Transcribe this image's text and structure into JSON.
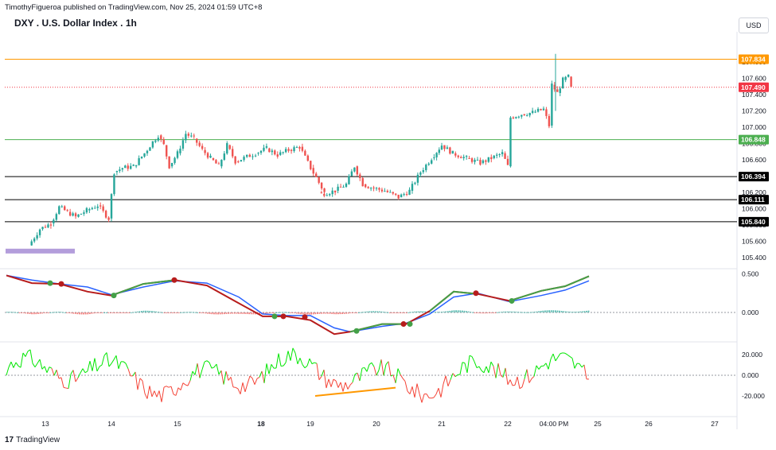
{
  "header": {
    "published": "TimothyFigueroa published on TradingView.com, Nov 25, 2024 01:59 UTC+8",
    "title": "DXY . U.S. Dollar Index . 1h",
    "currency": "USD"
  },
  "footer": {
    "brand_logo": "17",
    "brand": "TradingView"
  },
  "colors": {
    "up": "#26a69a",
    "down": "#ef5350",
    "orange": "#ff9800",
    "red_dotted": "#f23645",
    "green_line": "#4caf50",
    "black_line": "#000000",
    "purple": "#b39ddb",
    "wave_green": "#43a047",
    "wave_red": "#b71c1c",
    "wave_blue": "#2962ff",
    "osc_green": "#00e600",
    "osc_red": "#f44336",
    "divergence": "#ff9800"
  },
  "chart_data": [
    {
      "type": "candlestick",
      "x_ticks": [
        "13",
        "14",
        "15",
        "18",
        "19",
        "20",
        "21",
        "22",
        "04:00 PM",
        "25",
        "26",
        "27"
      ],
      "y_ticks": [
        "105.400",
        "105.600",
        "105.800",
        "106.000",
        "106.200",
        "106.400",
        "106.600",
        "106.800",
        "107.000",
        "107.200",
        "107.400",
        "107.600",
        "107.800"
      ],
      "price_labels": [
        {
          "value": "107.834",
          "color": "#ff9800",
          "style": "solid"
        },
        {
          "value": "107.490",
          "color": "#f23645",
          "style": "dotted"
        },
        {
          "value": "106.848",
          "color": "#4caf50",
          "style": "solid"
        },
        {
          "value": "106.394",
          "color": "#000000",
          "style": "solid"
        },
        {
          "value": "106.111",
          "color": "#000000",
          "style": "solid"
        },
        {
          "value": "105.840",
          "color": "#000000",
          "style": "solid"
        }
      ],
      "close_path": [
        {
          "x": "Nov 12 18:00",
          "y": 105.55
        },
        {
          "x": "Nov 12 22:00",
          "y": 105.75
        },
        {
          "x": "Nov 13 02:00",
          "y": 105.82
        },
        {
          "x": "Nov 13 05:00",
          "y": 106.02
        },
        {
          "x": "Nov 13 08:00",
          "y": 105.96
        },
        {
          "x": "Nov 13 11:00",
          "y": 105.9
        },
        {
          "x": "Nov 13 15:00",
          "y": 105.98
        },
        {
          "x": "Nov 13 19:00",
          "y": 106.04
        },
        {
          "x": "Nov 13 23:00",
          "y": 105.88
        },
        {
          "x": "Nov 14 01:00",
          "y": 106.45
        },
        {
          "x": "Nov 14 04:00",
          "y": 106.5
        },
        {
          "x": "Nov 14 08:00",
          "y": 106.52
        },
        {
          "x": "Nov 14 12:00",
          "y": 106.68
        },
        {
          "x": "Nov 14 15:00",
          "y": 106.82
        },
        {
          "x": "Nov 14 17:00",
          "y": 106.9
        },
        {
          "x": "Nov 14 19:00",
          "y": 106.78
        },
        {
          "x": "Nov 14 21:00",
          "y": 106.52
        },
        {
          "x": "Nov 15 00:00",
          "y": 106.68
        },
        {
          "x": "Nov 15 03:00",
          "y": 106.92
        },
        {
          "x": "Nov 15 06:00",
          "y": 106.86
        },
        {
          "x": "Nov 15 09:00",
          "y": 106.72
        },
        {
          "x": "Nov 15 12:00",
          "y": 106.62
        },
        {
          "x": "Nov 15 15:00",
          "y": 106.52
        },
        {
          "x": "Nov 15 18:00",
          "y": 106.78
        },
        {
          "x": "Nov 15 21:00",
          "y": 106.58
        },
        {
          "x": "Nov 17 22:00",
          "y": 106.68
        },
        {
          "x": "Nov 18 02:00",
          "y": 106.74
        },
        {
          "x": "Nov 18 06:00",
          "y": 106.66
        },
        {
          "x": "Nov 18 10:00",
          "y": 106.72
        },
        {
          "x": "Nov 18 14:00",
          "y": 106.76
        },
        {
          "x": "Nov 18 18:00",
          "y": 106.5
        },
        {
          "x": "Nov 18 23:00",
          "y": 106.2
        },
        {
          "x": "Nov 19 04:00",
          "y": 106.18
        },
        {
          "x": "Nov 19 09:00",
          "y": 106.22
        },
        {
          "x": "Nov 19 13:00",
          "y": 106.3
        },
        {
          "x": "Nov 19 16:00",
          "y": 106.52
        },
        {
          "x": "Nov 19 19:00",
          "y": 106.3
        },
        {
          "x": "Nov 19 22:00",
          "y": 106.26
        },
        {
          "x": "Nov 20 03:00",
          "y": 106.22
        },
        {
          "x": "Nov 20 08:00",
          "y": 106.14
        },
        {
          "x": "Nov 20 12:00",
          "y": 106.22
        },
        {
          "x": "Nov 20 16:00",
          "y": 106.45
        },
        {
          "x": "Nov 20 20:00",
          "y": 106.62
        },
        {
          "x": "Nov 21 00:00",
          "y": 106.78
        },
        {
          "x": "Nov 21 04:00",
          "y": 106.68
        },
        {
          "x": "Nov 21 09:00",
          "y": 106.62
        },
        {
          "x": "Nov 21 14:00",
          "y": 106.56
        },
        {
          "x": "Nov 21 18:00",
          "y": 106.62
        },
        {
          "x": "Nov 21 22:00",
          "y": 106.68
        },
        {
          "x": "Nov 22 00:00",
          "y": 106.52
        },
        {
          "x": "Nov 22 01:00",
          "y": 107.12
        },
        {
          "x": "Nov 22 05:00",
          "y": 107.16
        },
        {
          "x": "Nov 22 09:00",
          "y": 107.18
        },
        {
          "x": "Nov 22 13:00",
          "y": 107.22
        },
        {
          "x": "Nov 22 15:00",
          "y": 107.02
        },
        {
          "x": "Nov 22 16:00",
          "y": 107.52
        },
        {
          "x": "Nov 22 18:00",
          "y": 107.42
        },
        {
          "x": "Nov 22 20:00",
          "y": 107.58
        },
        {
          "x": "Nov 22 22:00",
          "y": 107.62
        },
        {
          "x": "Nov 22 23:00",
          "y": 107.48
        }
      ],
      "overlay_bar": {
        "color": "#b39ddb",
        "from": "Nov 12 14:00",
        "to": "Nov 13 15:00",
        "level": 105.48
      }
    },
    {
      "type": "oscillator",
      "name": "wave",
      "y_ticks": [
        "0.500",
        "0.000"
      ]
    },
    {
      "type": "oscillator",
      "name": "oscillator",
      "y_ticks": [
        "20.000",
        "0.000",
        "-20.000"
      ]
    }
  ]
}
